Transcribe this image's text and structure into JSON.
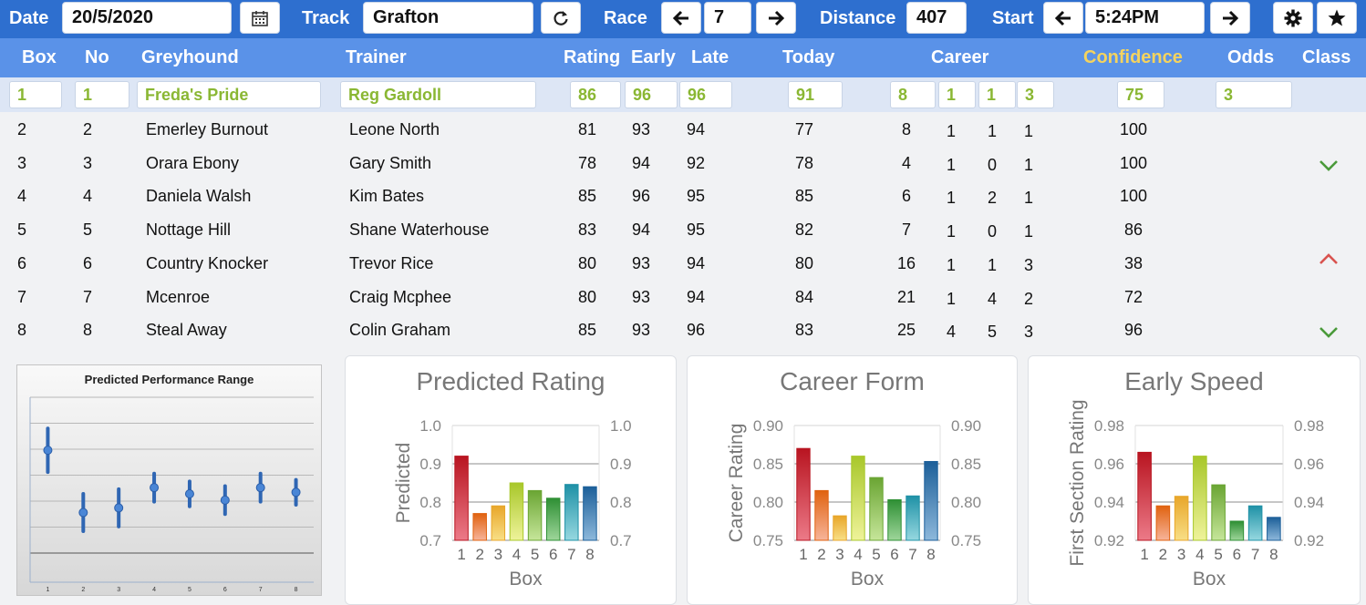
{
  "toolbar": {
    "date_label": "Date",
    "date_value": "20/5/2020",
    "track_label": "Track",
    "track_value": "Grafton",
    "race_label": "Race",
    "race_value": "7",
    "distance_label": "Distance",
    "distance_value": "407",
    "start_label": "Start",
    "start_value": "5:24PM",
    "icons": [
      "calendar-icon",
      "refresh-icon",
      "arrow-left-icon",
      "arrow-right-icon",
      "gear-icon",
      "star-icon"
    ]
  },
  "columns": {
    "box": "Box",
    "no": "No",
    "greyhound": "Greyhound",
    "trainer": "Trainer",
    "rating": "Rating",
    "early": "Early",
    "late": "Late",
    "today": "Today",
    "career": "Career",
    "confidence": "Confidence",
    "odds": "Odds",
    "class": "Class"
  },
  "colors": {
    "topbar": "#2e6fcf",
    "header": "#5a92e8",
    "selected_text": "#8ab733",
    "confidence_header": "#f4d35e",
    "class_up": "#d9534f",
    "class_down": "#4a9a3a"
  },
  "selected": {
    "box": "1",
    "no": "1",
    "greyhound": "Freda's Pride",
    "trainer": "Reg Gardoll",
    "rating": "86",
    "early": "96",
    "late": "96",
    "today": "91",
    "career": [
      "8",
      "1",
      "1",
      "3"
    ],
    "confidence": "75",
    "odds": "3"
  },
  "rows": [
    {
      "box": "2",
      "no": "2",
      "greyhound": "Emerley Burnout",
      "trainer": "Leone North",
      "rating": "81",
      "early": "93",
      "late": "94",
      "today": "77",
      "career": [
        "8",
        "1",
        "1",
        "1"
      ],
      "confidence": "100",
      "class": ""
    },
    {
      "box": "3",
      "no": "3",
      "greyhound": "Orara Ebony",
      "trainer": "Gary Smith",
      "rating": "78",
      "early": "94",
      "late": "92",
      "today": "78",
      "career": [
        "4",
        "1",
        "0",
        "1"
      ],
      "confidence": "100",
      "class": "down"
    },
    {
      "box": "4",
      "no": "4",
      "greyhound": "Daniela Walsh",
      "trainer": "Kim Bates",
      "rating": "85",
      "early": "96",
      "late": "95",
      "today": "85",
      "career": [
        "6",
        "1",
        "2",
        "1"
      ],
      "confidence": "100",
      "class": ""
    },
    {
      "box": "5",
      "no": "5",
      "greyhound": "Nottage Hill",
      "trainer": "Shane Waterhouse",
      "rating": "83",
      "early": "94",
      "late": "95",
      "today": "82",
      "career": [
        "7",
        "1",
        "0",
        "1"
      ],
      "confidence": "86",
      "class": ""
    },
    {
      "box": "6",
      "no": "6",
      "greyhound": "Country Knocker",
      "trainer": "Trevor Rice",
      "rating": "80",
      "early": "93",
      "late": "94",
      "today": "80",
      "career": [
        "16",
        "1",
        "1",
        "3"
      ],
      "confidence": "38",
      "class": "up"
    },
    {
      "box": "7",
      "no": "7",
      "greyhound": "Mcenroe",
      "trainer": "Craig Mcphee",
      "rating": "80",
      "early": "93",
      "late": "94",
      "today": "84",
      "career": [
        "21",
        "1",
        "4",
        "2"
      ],
      "confidence": "72",
      "class": ""
    },
    {
      "box": "8",
      "no": "8",
      "greyhound": "Steal Away",
      "trainer": "Colin Graham",
      "rating": "85",
      "early": "93",
      "late": "96",
      "today": "83",
      "career": [
        "25",
        "4",
        "5",
        "3"
      ],
      "confidence": "96",
      "class": "down"
    }
  ],
  "chart_data": [
    {
      "type": "scatter",
      "title": "Predicted Performance Range",
      "x": [
        1,
        2,
        3,
        4,
        5,
        6,
        7,
        8
      ],
      "values": [
        0.66,
        0.26,
        0.29,
        0.42,
        0.38,
        0.34,
        0.42,
        0.39
      ],
      "low": [
        0.52,
        0.14,
        0.17,
        0.33,
        0.3,
        0.25,
        0.33,
        0.31
      ],
      "high": [
        0.8,
        0.38,
        0.41,
        0.51,
        0.46,
        0.43,
        0.51,
        0.47
      ],
      "ylim": [
        0,
        1
      ]
    },
    {
      "type": "bar",
      "title": "Predicted Rating",
      "xlabel": "Box",
      "ylabel": "Predicted",
      "categories": [
        "1",
        "2",
        "3",
        "4",
        "5",
        "6",
        "7",
        "8"
      ],
      "values": [
        0.92,
        0.77,
        0.79,
        0.85,
        0.83,
        0.81,
        0.846,
        0.84
      ],
      "ylim": [
        0.7,
        1.0
      ],
      "yticks": [
        "0.7",
        "0.8",
        "0.9",
        "1.0"
      ]
    },
    {
      "type": "bar",
      "title": "Career Form",
      "xlabel": "Box",
      "ylabel": "Career Rating",
      "categories": [
        "1",
        "2",
        "3",
        "4",
        "5",
        "6",
        "7",
        "8"
      ],
      "values": [
        0.87,
        0.815,
        0.782,
        0.86,
        0.832,
        0.803,
        0.808,
        0.853
      ],
      "ylim": [
        0.75,
        0.9
      ],
      "yticks": [
        "0.75",
        "0.80",
        "0.85",
        "0.90"
      ]
    },
    {
      "type": "bar",
      "title": "Early Speed",
      "xlabel": "Box",
      "ylabel": "First Section Rating",
      "categories": [
        "1",
        "2",
        "3",
        "4",
        "5",
        "6",
        "7",
        "8"
      ],
      "values": [
        0.966,
        0.938,
        0.943,
        0.964,
        0.949,
        0.93,
        0.938,
        0.932
      ],
      "ylim": [
        0.92,
        0.98
      ],
      "yticks": [
        "0.92",
        "0.94",
        "0.96",
        "0.98"
      ]
    }
  ]
}
